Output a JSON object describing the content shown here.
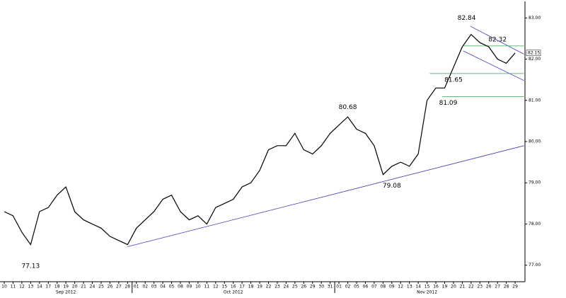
{
  "chart_data": {
    "type": "line",
    "color": "#000000",
    "months": [
      {
        "name": "Sep 2012",
        "days": [
          "10",
          "11",
          "12",
          "13",
          "14",
          "17",
          "18",
          "19",
          "20",
          "21",
          "24",
          "25",
          "26",
          "27",
          "28"
        ]
      },
      {
        "name": "Oct 2012",
        "days": [
          "01",
          "02",
          "03",
          "04",
          "05",
          "08",
          "09",
          "10",
          "11",
          "12",
          "15",
          "16",
          "17",
          "18",
          "19",
          "22",
          "23",
          "24",
          "25",
          "26",
          "29",
          "30",
          "31"
        ]
      },
      {
        "name": "Nov 2012",
        "days": [
          "01",
          "02",
          "05",
          "06",
          "07",
          "08",
          "09",
          "12",
          "13",
          "14",
          "15",
          "16",
          "19",
          "20",
          "21",
          "22",
          "23",
          "26",
          "27",
          "28",
          "29"
        ]
      }
    ],
    "values": [
      78.3,
      78.2,
      77.8,
      77.5,
      78.3,
      78.4,
      78.7,
      78.9,
      78.3,
      78.1,
      78.0,
      77.9,
      77.7,
      77.6,
      77.5,
      77.9,
      78.1,
      78.3,
      78.6,
      78.7,
      78.3,
      78.1,
      78.2,
      78.0,
      78.4,
      78.5,
      78.6,
      78.9,
      79.0,
      79.3,
      79.8,
      79.9,
      79.9,
      80.2,
      79.8,
      79.7,
      79.9,
      80.2,
      80.4,
      80.6,
      80.3,
      80.2,
      79.9,
      79.2,
      79.4,
      79.5,
      79.4,
      79.7,
      81.0,
      81.3,
      81.3,
      81.8,
      82.3,
      82.6,
      82.4,
      82.3,
      82.0,
      81.9,
      82.15
    ],
    "ylim": [
      76.6,
      83.4
    ],
    "yticks": [
      {
        "value": 77,
        "label": "77.00"
      },
      {
        "value": 78,
        "label": "78.00"
      },
      {
        "value": 79,
        "label": "79.00"
      },
      {
        "value": 80,
        "label": "80.00"
      },
      {
        "value": 81,
        "label": "81.00"
      },
      {
        "value": 82,
        "label": "82.00"
      },
      {
        "value": 83,
        "label": "83.00"
      }
    ],
    "annotations": [
      {
        "x": 3,
        "value": 77.13
      },
      {
        "x": 39,
        "value": 80.68
      },
      {
        "x": 44,
        "value": 79.08
      },
      {
        "x": 52.5,
        "value": 82.84
      },
      {
        "x": 56,
        "value": 82.32
      },
      {
        "x": 51,
        "value": 81.65
      },
      {
        "x": 50.4,
        "value": 81.09
      }
    ],
    "lines": [
      {
        "color": "#3b3bb0",
        "x": [
          14,
          59
        ],
        "y": [
          77.45,
          79.9
        ]
      },
      {
        "color": "#3b3bb0",
        "x": [
          52.9,
          59
        ],
        "y": [
          82.8,
          82.12
        ]
      },
      {
        "color": "#3b3bb0",
        "x": [
          52.1,
          59
        ],
        "y": [
          82.2,
          81.48
        ]
      },
      {
        "color": "#3aa050",
        "x": [
          52.1,
          59
        ],
        "y": [
          82.32,
          82.32
        ]
      },
      {
        "color": "#3aa050",
        "x": [
          48.3,
          59
        ],
        "y": [
          81.65,
          81.65
        ]
      },
      {
        "color": "#3aa050",
        "x": [
          49.7,
          59
        ],
        "y": [
          81.09,
          81.09
        ]
      }
    ]
  }
}
